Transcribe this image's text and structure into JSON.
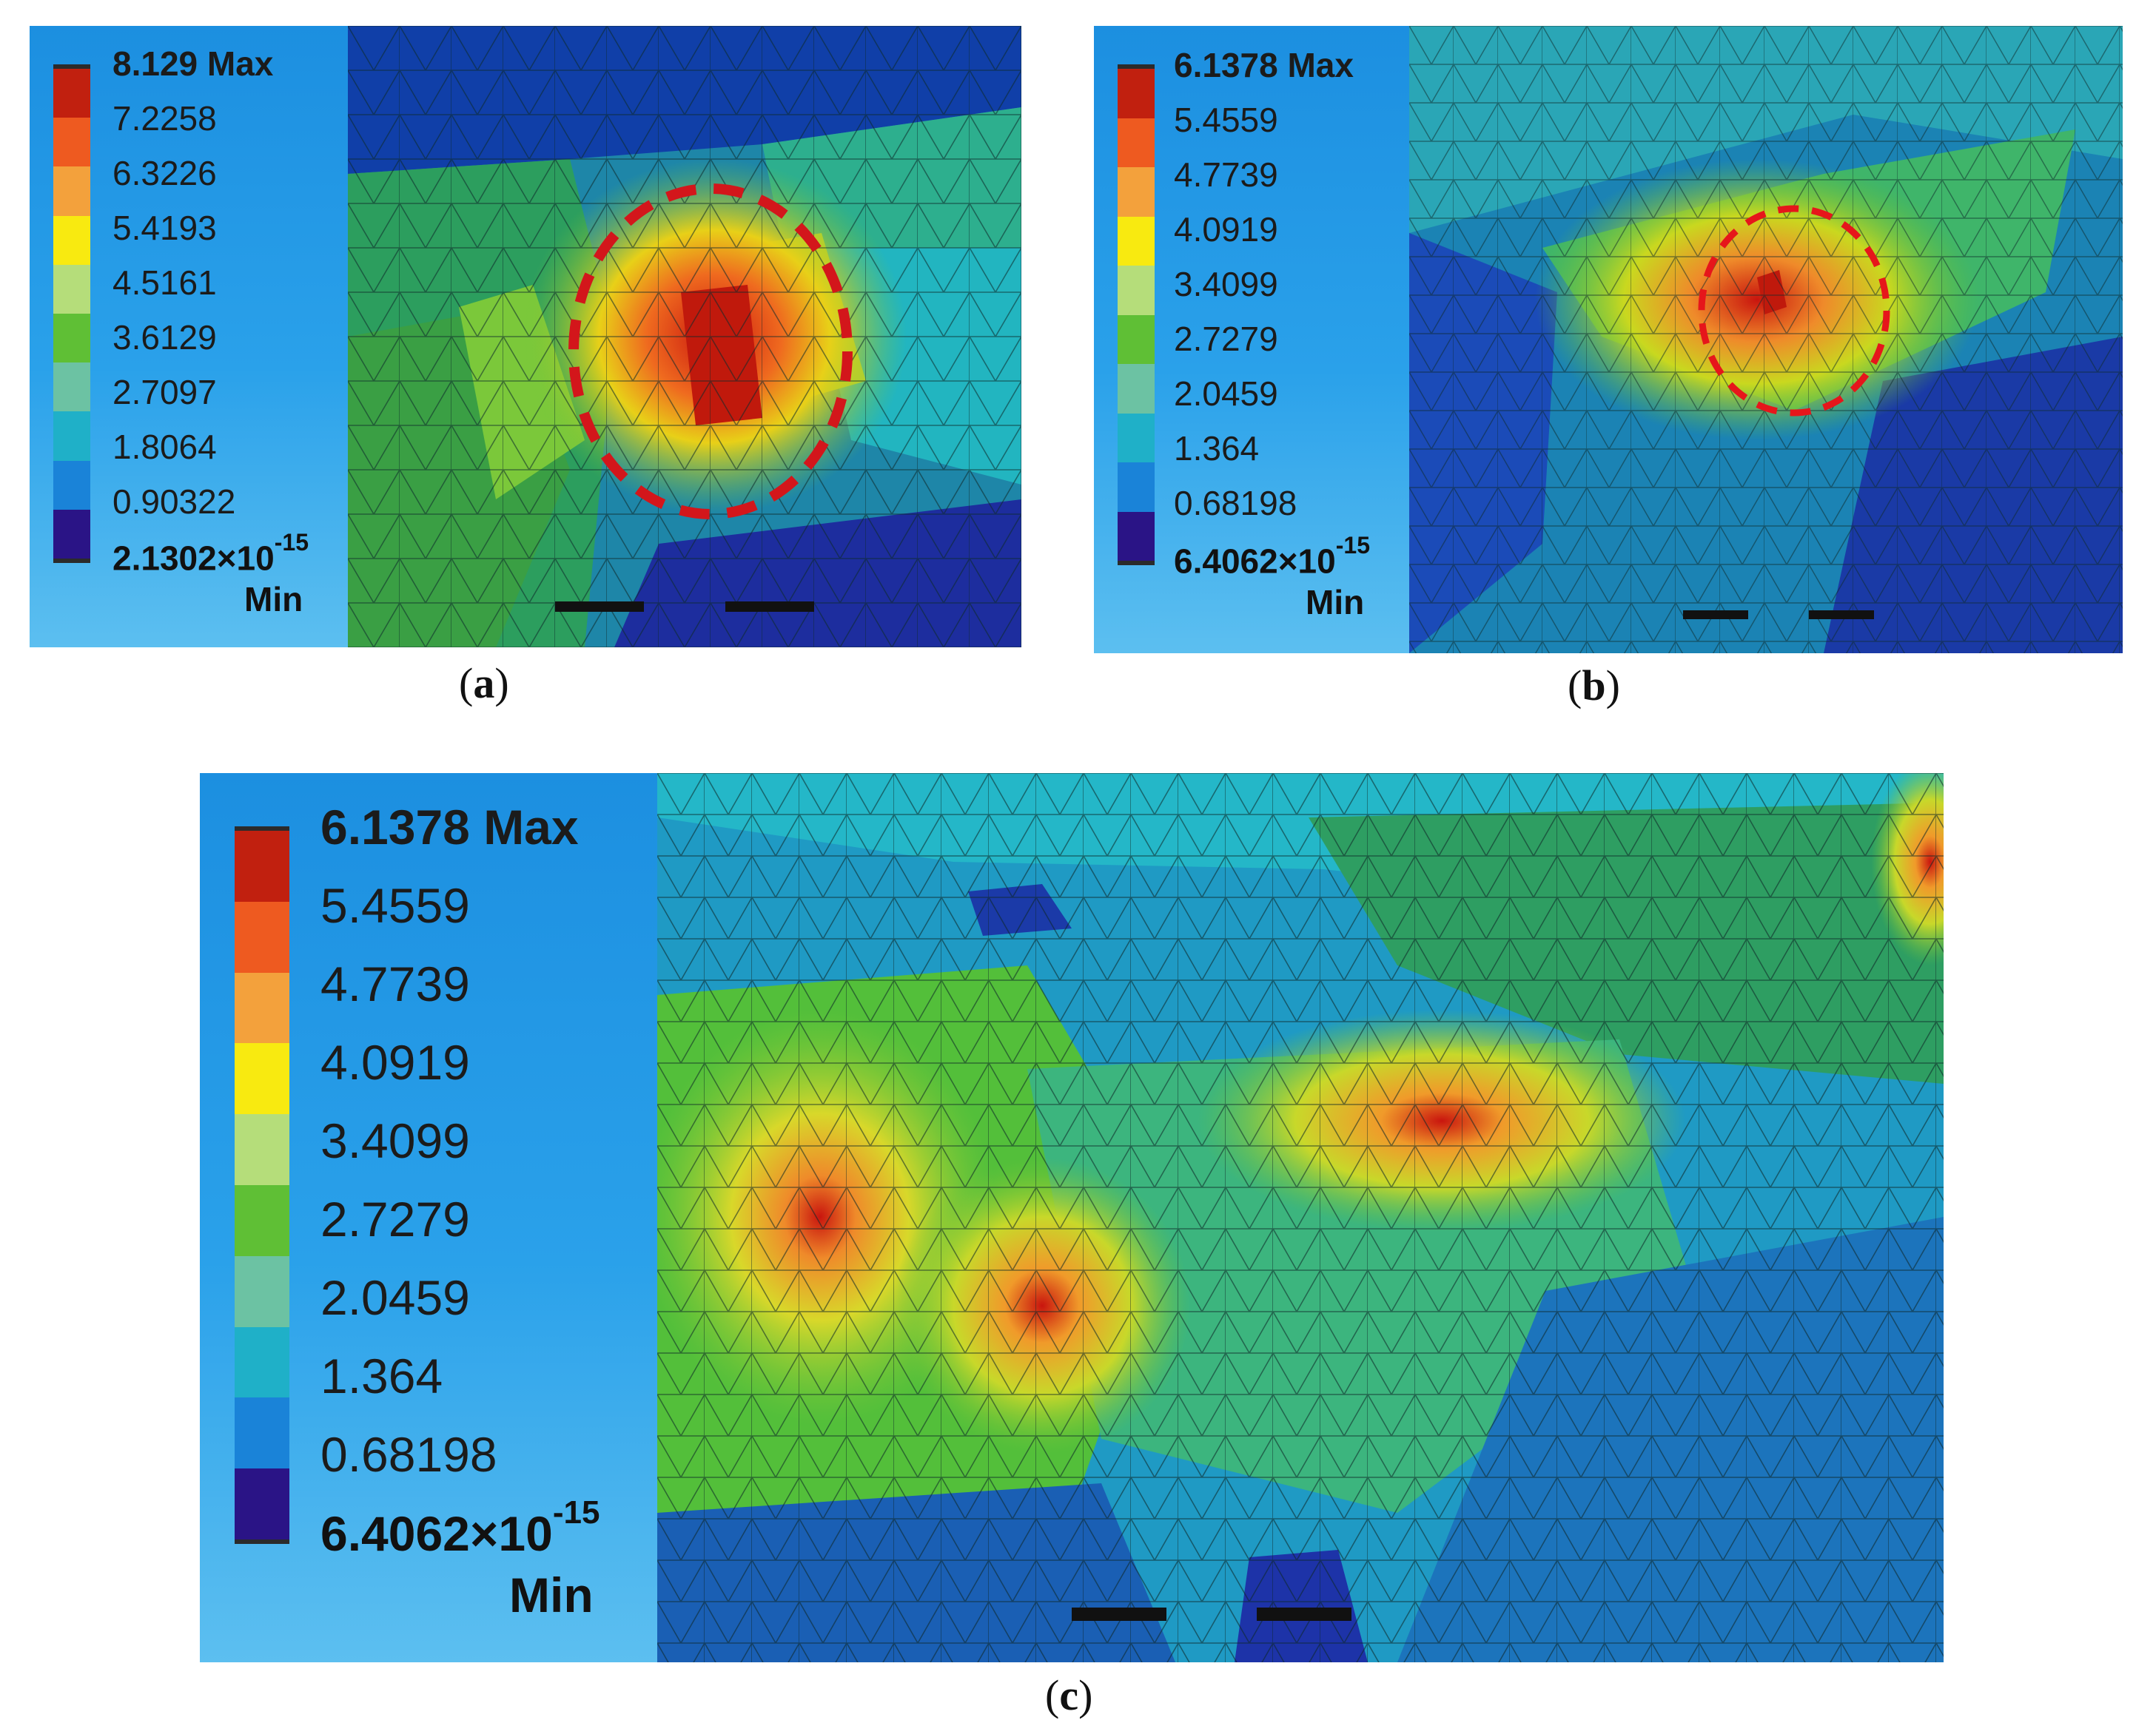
{
  "panels": [
    {
      "id": "a",
      "caption": "a",
      "legend_max": "8.129 Max",
      "legend_ticks": [
        "7.2258",
        "6.3226",
        "5.4193",
        "4.5161",
        "3.6129",
        "2.7097",
        "1.8064",
        "0.90322"
      ],
      "legend_min_base": "2.1302×10",
      "legend_min_exp": "-15",
      "legend_min_word": "Min"
    },
    {
      "id": "b",
      "caption": "b",
      "legend_max": "6.1378 Max",
      "legend_ticks": [
        "5.4559",
        "4.7739",
        "4.0919",
        "3.4099",
        "2.7279",
        "2.0459",
        "1.364",
        "0.68198"
      ],
      "legend_min_base": "6.4062×10",
      "legend_min_exp": "-15",
      "legend_min_word": "Min"
    },
    {
      "id": "c",
      "caption": "c",
      "legend_max": "6.1378 Max",
      "legend_ticks": [
        "5.4559",
        "4.7739",
        "4.0919",
        "3.4099",
        "2.7279",
        "2.0459",
        "1.364",
        "0.68198"
      ],
      "legend_min_base": "6.4062×10",
      "legend_min_exp": "-15",
      "legend_min_word": "Min"
    }
  ],
  "colorbar": [
    "#c1200f",
    "#ee5a20",
    "#f3a13c",
    "#f8ea10",
    "#b5dd7a",
    "#5fbf35",
    "#6cc2a3",
    "#1fb0c8",
    "#1a83d8",
    "#2a1486"
  ]
}
